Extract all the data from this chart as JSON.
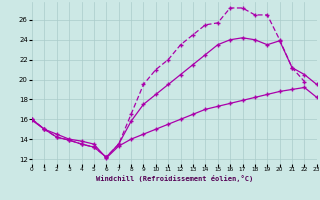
{
  "xlabel": "Windchill (Refroidissement éolien,°C)",
  "background_color": "#cce8e5",
  "grid_color": "#aaccca",
  "line_color": "#aa00aa",
  "xlim": [
    0,
    23
  ],
  "ylim": [
    11.5,
    27.8
  ],
  "yticks": [
    12,
    14,
    16,
    18,
    20,
    22,
    24,
    26
  ],
  "xticks": [
    0,
    1,
    2,
    3,
    4,
    5,
    6,
    7,
    8,
    9,
    10,
    11,
    12,
    13,
    14,
    15,
    16,
    17,
    18,
    19,
    20,
    21,
    22,
    23
  ],
  "line1_x": [
    0,
    1,
    2,
    3,
    4,
    5,
    6,
    7,
    8,
    9,
    10,
    11,
    12,
    13,
    14,
    15,
    16,
    17,
    18,
    19,
    20,
    21,
    22,
    23
  ],
  "line1_y": [
    15.9,
    15.0,
    14.5,
    14.0,
    13.8,
    13.5,
    12.1,
    13.3,
    14.0,
    14.5,
    15.0,
    15.5,
    16.0,
    16.5,
    17.0,
    17.3,
    17.6,
    17.9,
    18.2,
    18.5,
    18.8,
    19.0,
    19.2,
    18.2
  ],
  "line2_x": [
    0,
    1,
    2,
    3,
    4,
    5,
    6,
    7,
    8,
    9,
    10,
    11,
    12,
    13,
    14,
    15,
    16,
    17,
    18,
    19,
    20,
    21,
    22,
    23
  ],
  "line2_y": [
    16.0,
    15.0,
    14.2,
    13.9,
    13.5,
    13.2,
    12.2,
    13.5,
    15.8,
    17.5,
    18.5,
    19.5,
    20.5,
    21.5,
    22.5,
    23.5,
    24.0,
    24.2,
    24.0,
    23.5,
    23.9,
    21.2,
    20.5,
    19.5
  ],
  "line3_x": [
    0,
    1,
    2,
    3,
    4,
    5,
    6,
    7,
    8,
    9,
    10,
    11,
    12,
    13,
    14,
    15,
    16,
    17,
    18,
    19,
    20,
    21,
    22
  ],
  "line3_y": [
    16.0,
    15.0,
    14.2,
    13.9,
    13.5,
    13.2,
    12.2,
    13.5,
    16.5,
    19.5,
    21.0,
    22.0,
    23.5,
    24.5,
    25.5,
    25.7,
    27.2,
    27.2,
    26.5,
    26.5,
    24.0,
    21.2,
    19.8
  ]
}
